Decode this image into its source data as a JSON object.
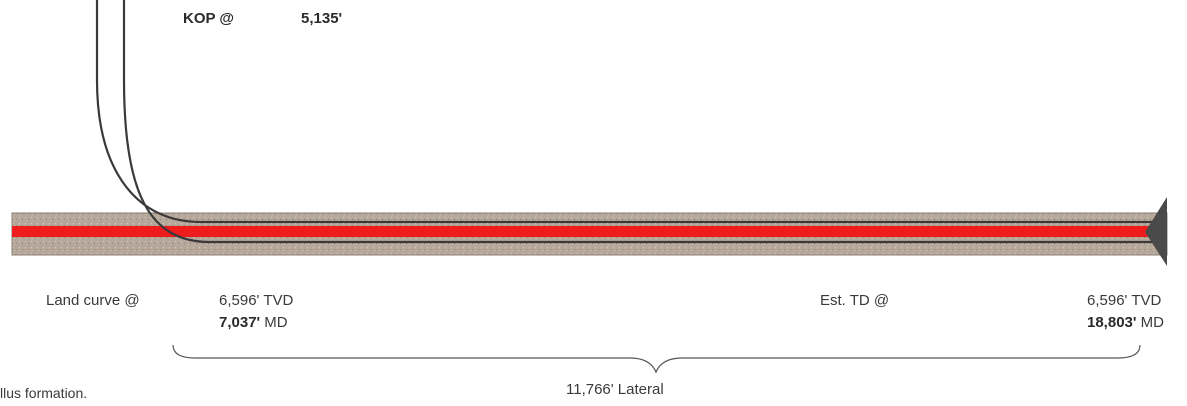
{
  "kop": {
    "label": "KOP @",
    "value": "5,135'"
  },
  "land_curve": {
    "label": "Land curve @",
    "tvd_value": "6,596'",
    "tvd_unit": "TVD",
    "md_value": "7,037'",
    "md_unit": "MD"
  },
  "est_td": {
    "label": "Est. TD @",
    "tvd_value": "6,596'",
    "tvd_unit": "TVD",
    "md_value": "18,803'",
    "md_unit": "MD"
  },
  "lateral": {
    "label": "11,766' Lateral"
  },
  "caption": "llus formation.",
  "colors": {
    "formation": "#b8a89c",
    "pay_zone": "#ee1c1c",
    "wellbore": "#3a3a3a",
    "bit": "#4a4a4a"
  }
}
